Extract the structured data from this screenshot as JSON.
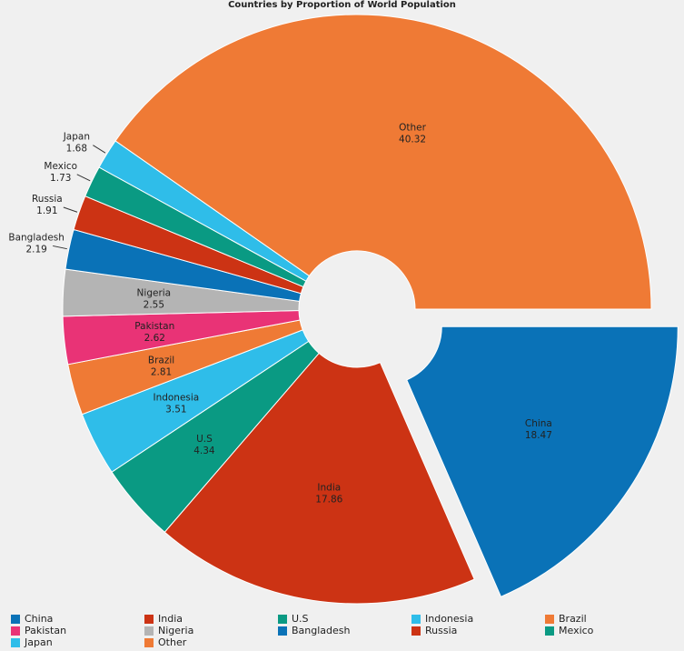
{
  "chart_data": {
    "type": "pie",
    "title": "Countries by Proportion of World Population",
    "donut": true,
    "exploded": "China",
    "slices": [
      {
        "label": "China",
        "value": 18.47,
        "color": "#0a72b7"
      },
      {
        "label": "India",
        "value": 17.86,
        "color": "#cc3314"
      },
      {
        "label": "U.S",
        "value": 4.34,
        "color": "#0a9a83"
      },
      {
        "label": "Indonesia",
        "value": 3.51,
        "color": "#2fbde9"
      },
      {
        "label": "Brazil",
        "value": 2.81,
        "color": "#ef7a35"
      },
      {
        "label": "Pakistan",
        "value": 2.62,
        "color": "#e93376"
      },
      {
        "label": "Nigeria",
        "value": 2.55,
        "color": "#b4b4b4"
      },
      {
        "label": "Bangladesh",
        "value": 2.19,
        "color": "#0a72b7"
      },
      {
        "label": "Russia",
        "value": 1.91,
        "color": "#cc3314"
      },
      {
        "label": "Mexico",
        "value": 1.73,
        "color": "#0a9a83"
      },
      {
        "label": "Japan",
        "value": 1.68,
        "color": "#2fbde9"
      },
      {
        "label": "Other",
        "value": 40.32,
        "color": "#ef7a35"
      }
    ],
    "legend_position": "bottom"
  }
}
